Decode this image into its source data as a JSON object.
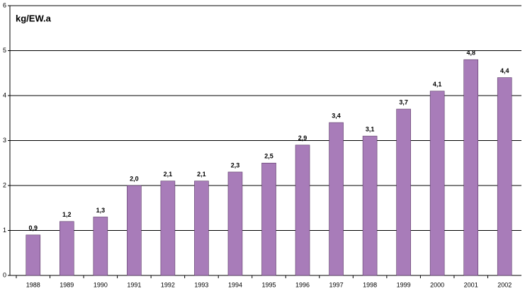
{
  "chart_data": {
    "type": "bar",
    "title": "kg/EW.a",
    "categories": [
      "1988",
      "1989",
      "1990",
      "1991",
      "1992",
      "1993",
      "1994",
      "1995",
      "1996",
      "1997",
      "1998",
      "1999",
      "2000",
      "2001",
      "2002"
    ],
    "values": [
      0.9,
      1.2,
      1.3,
      2.0,
      2.1,
      2.1,
      2.3,
      2.5,
      2.9,
      3.4,
      3.1,
      3.7,
      4.1,
      4.8,
      4.4
    ],
    "value_labels": [
      "0,9",
      "1,2",
      "1,3",
      "2,0",
      "2,1",
      "2,1",
      "2,3",
      "2,5",
      "2,9",
      "3,4",
      "3,1",
      "3,7",
      "4,1",
      "4,8",
      "4,4"
    ],
    "color": "#a87cb9",
    "ylim": [
      0,
      6
    ],
    "yticks": [
      0,
      1,
      2,
      3,
      4,
      5,
      6
    ],
    "grid": true
  }
}
